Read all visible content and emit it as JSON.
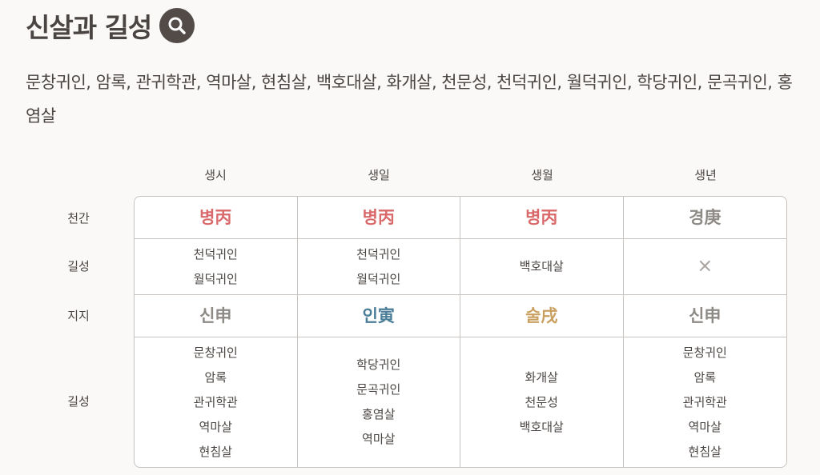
{
  "title": "신살과 길성",
  "summary": "문창귀인, 암록, 관귀학관, 역마살, 현침살, 백호대살, 화개살, 천문성, 천덕귀인, 월덕귀인, 학당귀인, 문곡귀인, 홍염살",
  "columns": [
    "생시",
    "생일",
    "생월",
    "생년"
  ],
  "row_labels": [
    "천간",
    "길성",
    "지지",
    "길성"
  ],
  "cheongan": [
    {
      "text": "병丙",
      "color": "#d9696a"
    },
    {
      "text": "병丙",
      "color": "#d9696a"
    },
    {
      "text": "병丙",
      "color": "#d9696a"
    },
    {
      "text": "경庚",
      "color": "#8e8a86"
    }
  ],
  "gilseong1": [
    [
      "천덕귀인",
      "월덕귀인"
    ],
    [
      "천덕귀인",
      "월덕귀인"
    ],
    [
      "백호대살"
    ],
    []
  ],
  "jiji": [
    {
      "text": "신申",
      "color": "#8e8a86"
    },
    {
      "text": "인寅",
      "color": "#4b7e98"
    },
    {
      "text": "술戌",
      "color": "#c9a060"
    },
    {
      "text": "신申",
      "color": "#8e8a86"
    }
  ],
  "gilseong2": [
    [
      "문창귀인",
      "암록",
      "관귀학관",
      "역마살",
      "현침살"
    ],
    [
      "학당귀인",
      "문곡귀인",
      "홍염살",
      "역마살"
    ],
    [
      "화개살",
      "천문성",
      "백호대살"
    ],
    [
      "문창귀인",
      "암록",
      "관귀학관",
      "역마살",
      "현침살"
    ]
  ],
  "empty_mark": "×",
  "icons": {
    "title": "search-icon"
  }
}
